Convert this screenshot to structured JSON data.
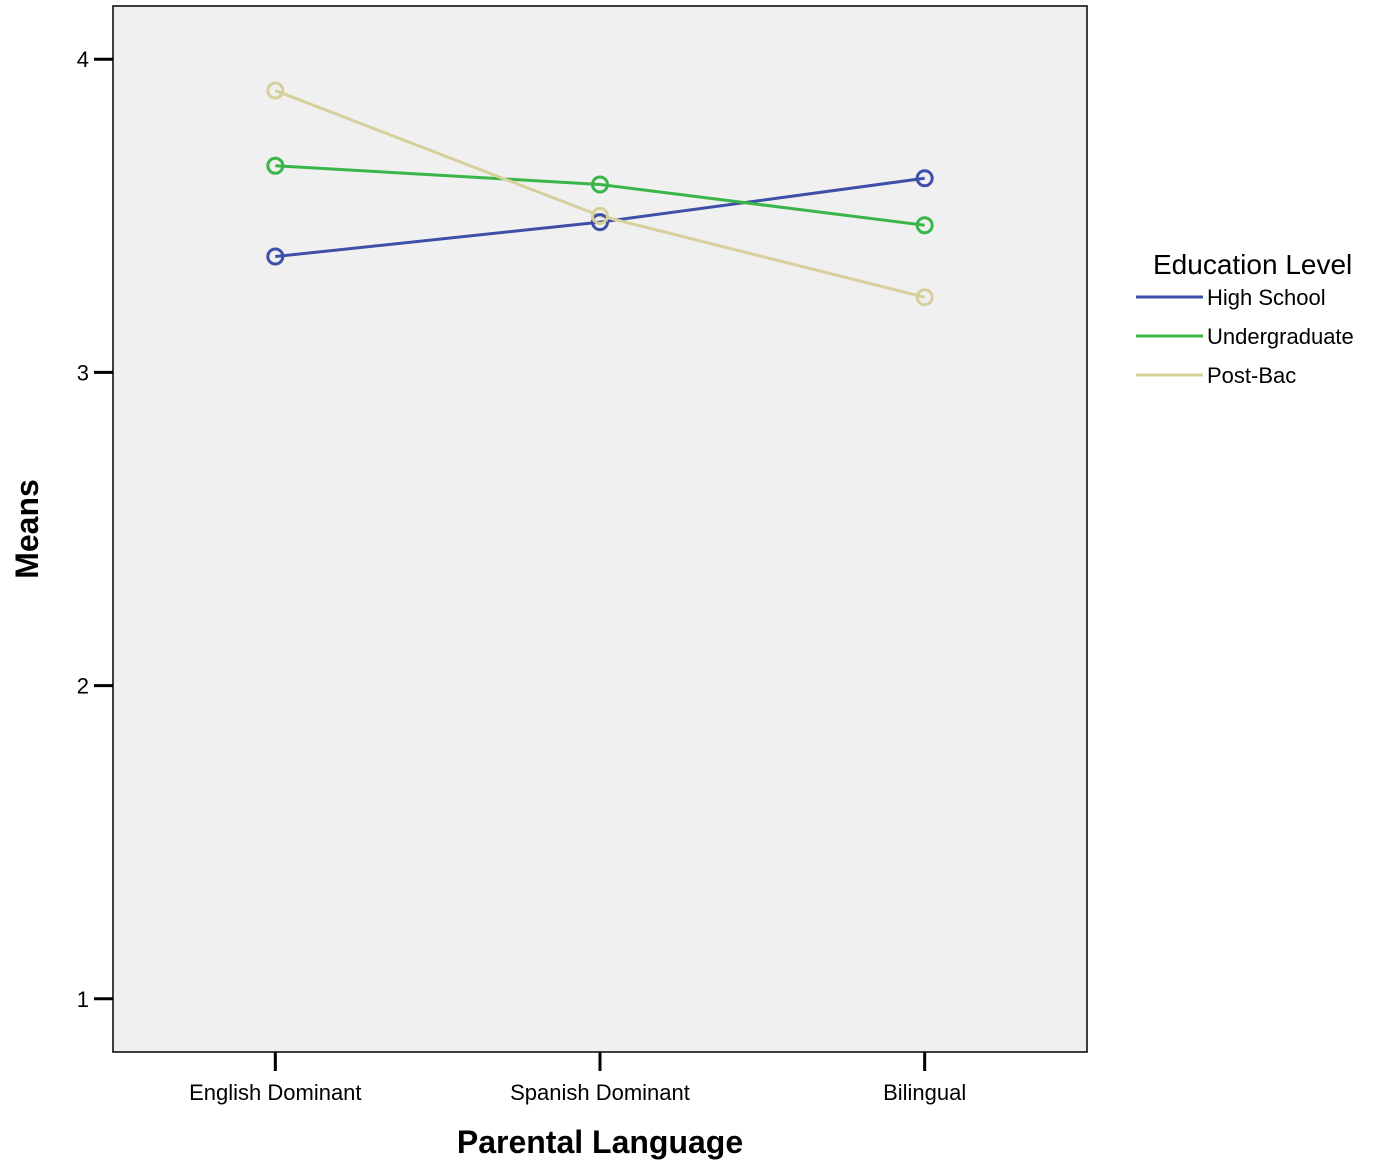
{
  "chart_data": {
    "type": "line",
    "title": "",
    "xlabel": "Parental Language",
    "ylabel": "Means",
    "categories": [
      "English Dominant",
      "Spanish Dominant",
      "Bilingual"
    ],
    "ylim": [
      0.83,
      4.17
    ],
    "yticks": [
      1,
      2,
      3,
      4
    ],
    "ytick_labels": [
      "1",
      "2",
      "3",
      "4"
    ],
    "grid": false,
    "legend": {
      "title": "Education Level",
      "position": "right"
    },
    "series": [
      {
        "name": "High School",
        "color": "#3e4fa8",
        "values": [
          3.37,
          3.48,
          3.62
        ]
      },
      {
        "name": "Undergraduate",
        "color": "#3ab549",
        "values": [
          3.66,
          3.6,
          3.47
        ]
      },
      {
        "name": "Post-Bac",
        "color": "#d6d09b",
        "values": [
          3.9,
          3.5,
          3.24
        ]
      }
    ],
    "marker": "open-circle",
    "plot_background": "#f0f0f0"
  }
}
